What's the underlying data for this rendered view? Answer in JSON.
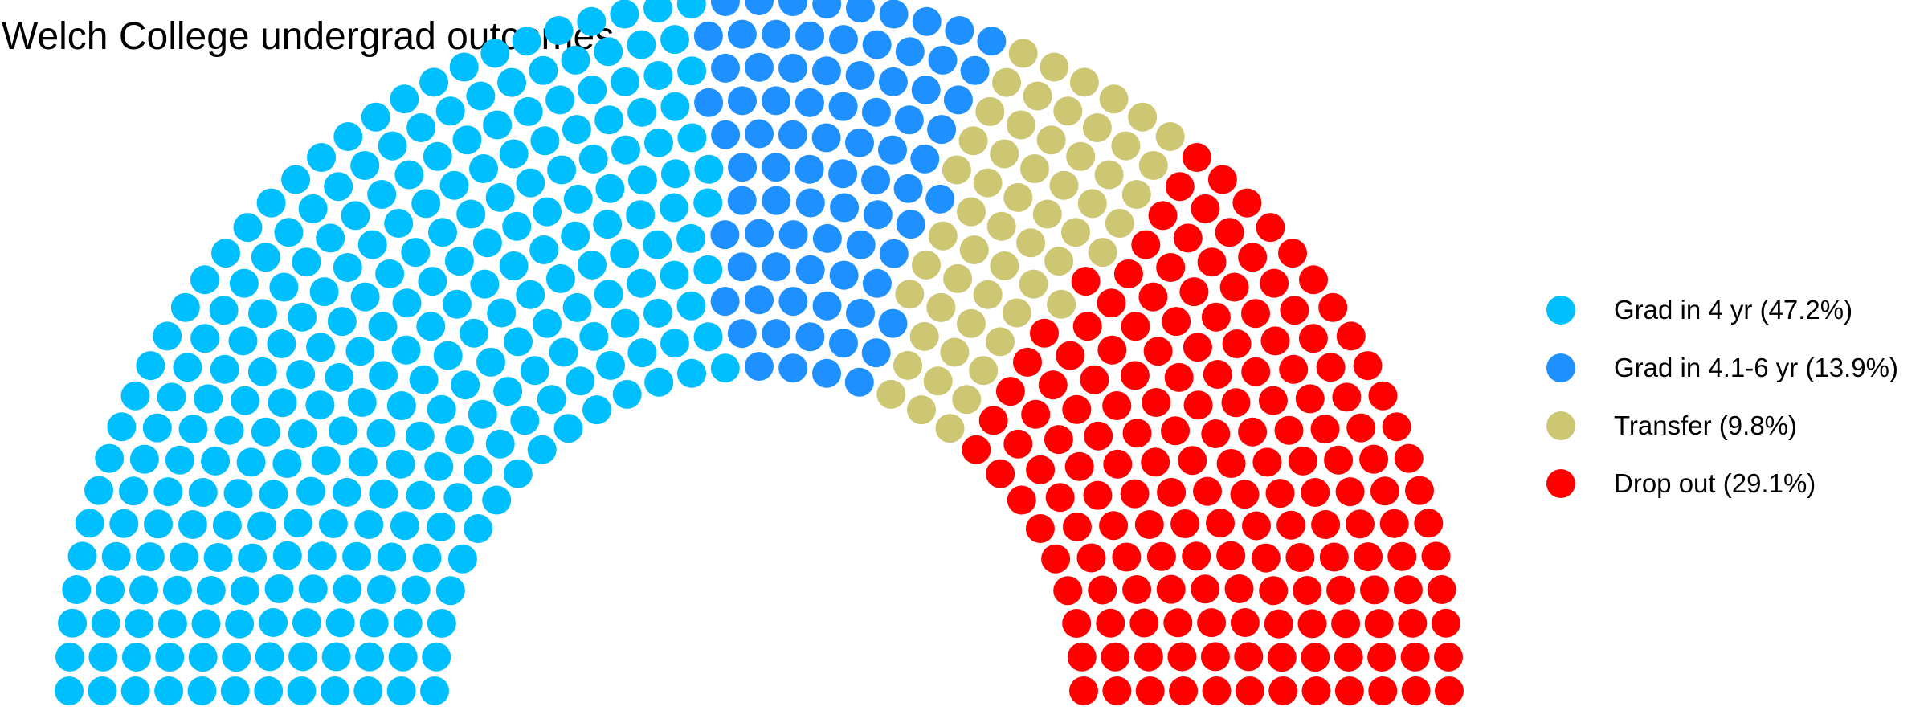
{
  "chart_data": {
    "type": "parliament",
    "title": "Welch College undergrad outcomes",
    "legend_position": "right",
    "series": [
      {
        "name": "Grad in 4 yr (47.2%)",
        "percent": 47.2,
        "color": "#00BFFF"
      },
      {
        "name": "Grad in 4.1-6 yr (13.9%)",
        "percent": 13.9,
        "color": "#1E90FF"
      },
      {
        "name": "Transfer (9.8%)",
        "percent": 9.8,
        "color": "#CDC673"
      },
      {
        "name": "Drop out (29.1%)",
        "percent": 29.1,
        "color": "#FF0000"
      }
    ]
  }
}
